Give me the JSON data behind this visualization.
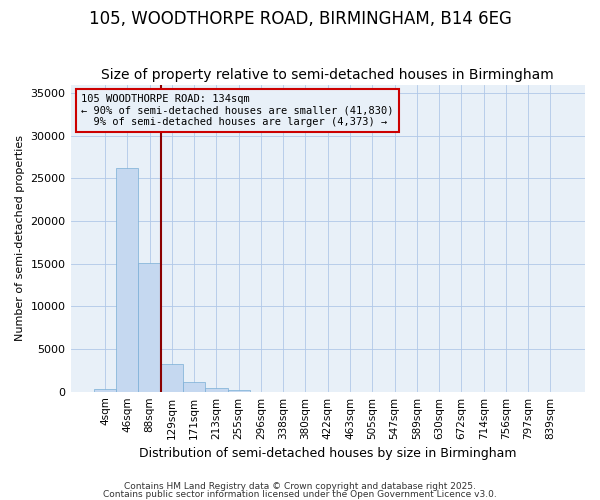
{
  "title": "105, WOODTHORPE ROAD, BIRMINGHAM, B14 6EG",
  "subtitle": "Size of property relative to semi-detached houses in Birmingham",
  "xlabel": "Distribution of semi-detached houses by size in Birmingham",
  "ylabel": "Number of semi-detached properties",
  "categories": [
    "4sqm",
    "46sqm",
    "88sqm",
    "129sqm",
    "171sqm",
    "213sqm",
    "255sqm",
    "296sqm",
    "338sqm",
    "380sqm",
    "422sqm",
    "463sqm",
    "505sqm",
    "547sqm",
    "589sqm",
    "630sqm",
    "672sqm",
    "714sqm",
    "756sqm",
    "797sqm",
    "839sqm"
  ],
  "values": [
    350,
    26200,
    15100,
    3200,
    1150,
    420,
    180,
    0,
    0,
    0,
    0,
    0,
    0,
    0,
    0,
    0,
    0,
    0,
    0,
    0,
    0
  ],
  "bar_color": "#c5d8f0",
  "bar_edge_color": "#7aaed6",
  "background_color": "#ffffff",
  "plot_bg_color": "#e8f0f8",
  "vline_color": "#8b0000",
  "vline_x_index": 2.5,
  "annotation_line1": "105 WOODTHORPE ROAD: 134sqm",
  "annotation_line2": "← 90% of semi-detached houses are smaller (41,830)",
  "annotation_line3": "  9% of semi-detached houses are larger (4,373) →",
  "annotation_box_color": "#cc0000",
  "ylim": [
    0,
    36000
  ],
  "yticks": [
    0,
    5000,
    10000,
    15000,
    20000,
    25000,
    30000,
    35000
  ],
  "title_fontsize": 12,
  "subtitle_fontsize": 10,
  "footer1": "Contains HM Land Registry data © Crown copyright and database right 2025.",
  "footer2": "Contains public sector information licensed under the Open Government Licence v3.0."
}
